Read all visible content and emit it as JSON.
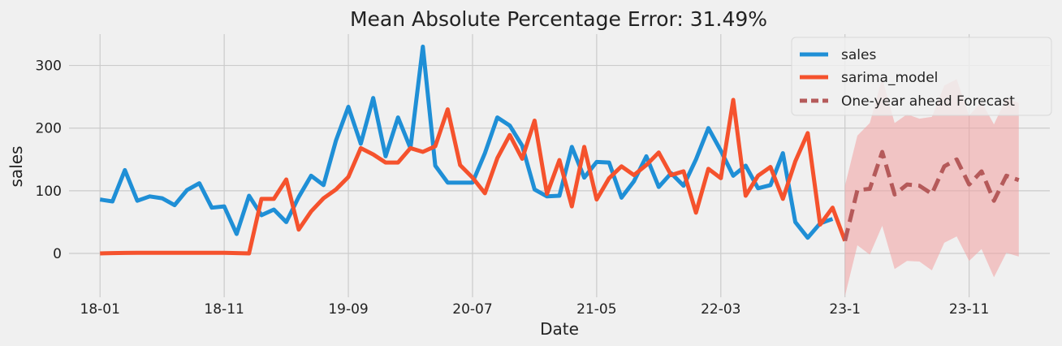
{
  "chart_data": {
    "type": "line",
    "title": "Mean Absolute Percentage Error: 31.49%",
    "xlabel": "Date",
    "ylabel": "sales",
    "x_ticks": [
      {
        "label": "18-01",
        "i": 0
      },
      {
        "label": "18-11",
        "i": 10
      },
      {
        "label": "19-09",
        "i": 20
      },
      {
        "label": "20-07",
        "i": 30
      },
      {
        "label": "21-05",
        "i": 40
      },
      {
        "label": "22-03",
        "i": 50
      },
      {
        "label": "23-1",
        "i": 60
      },
      {
        "label": "23-11",
        "i": 70
      }
    ],
    "y_ticks": [
      0,
      100,
      200,
      300
    ],
    "ylim": [
      -70,
      350
    ],
    "xlim": [
      -2.5,
      76.5
    ],
    "grid": true,
    "legend_position": "top-right",
    "colors": {
      "sales": "#1f8fd6",
      "sarima_model": "#f5522d",
      "forecast": "#b55a5a",
      "band": "#f2a0a0"
    },
    "series": [
      {
        "name": "sales",
        "style": "solid",
        "start_index": 0,
        "values": [
          86,
          83,
          133,
          84,
          91,
          88,
          77,
          101,
          112,
          73,
          75,
          31,
          92,
          61,
          70,
          50,
          90,
          124,
          109,
          180,
          234,
          175,
          248,
          155,
          217,
          168,
          330,
          140,
          113,
          113,
          113,
          160,
          217,
          204,
          172,
          102,
          91,
          92,
          170,
          121,
          146,
          145,
          89,
          115,
          155,
          106,
          128,
          108,
          150,
          200,
          164,
          124,
          140,
          104,
          109,
          160,
          50,
          25,
          48,
          55
        ]
      },
      {
        "name": "sarima_model",
        "style": "solid",
        "start_index": 0,
        "values": [
          0,
          0.5,
          0.8,
          1,
          1,
          1,
          1,
          1,
          1,
          1,
          1,
          0.5,
          0,
          87,
          87,
          118,
          38,
          67,
          88,
          102,
          122,
          168,
          158,
          145,
          145,
          168,
          162,
          171,
          230,
          141,
          121,
          96,
          152,
          189,
          151,
          212,
          95,
          149,
          75,
          170,
          86,
          120,
          139,
          125,
          141,
          161,
          125,
          131,
          65,
          135,
          120,
          245,
          92,
          124,
          138,
          87,
          147,
          192,
          46,
          73,
          20
        ]
      },
      {
        "name": "One-year ahead Forecast",
        "style": "dashed",
        "start_index": 60,
        "values": [
          20,
          101,
          103,
          162,
          94,
          110,
          108,
          95,
          139,
          150,
          110,
          131,
          84,
          124,
          117
        ],
        "band_lower": [
          -68,
          13,
          -2,
          44,
          -25,
          -12,
          -13,
          -27,
          17,
          27,
          -12,
          7,
          -38,
          1,
          -5
        ],
        "band_upper": [
          108,
          188,
          208,
          280,
          208,
          222,
          215,
          218,
          268,
          278,
          220,
          242,
          206,
          248,
          240
        ]
      }
    ]
  }
}
